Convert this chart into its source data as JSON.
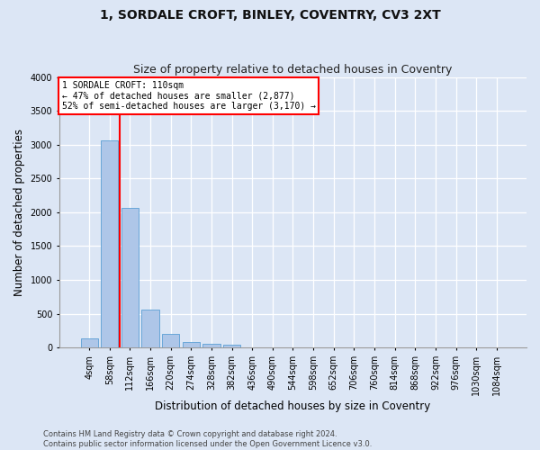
{
  "title": "1, SORDALE CROFT, BINLEY, COVENTRY, CV3 2XT",
  "subtitle": "Size of property relative to detached houses in Coventry",
  "xlabel": "Distribution of detached houses by size in Coventry",
  "ylabel": "Number of detached properties",
  "bar_color": "#aec6e8",
  "bar_edge_color": "#5a9fd4",
  "background_color": "#dce6f5",
  "grid_color": "#ffffff",
  "categories": [
    "4sqm",
    "58sqm",
    "112sqm",
    "166sqm",
    "220sqm",
    "274sqm",
    "328sqm",
    "382sqm",
    "436sqm",
    "490sqm",
    "544sqm",
    "598sqm",
    "652sqm",
    "706sqm",
    "760sqm",
    "814sqm",
    "868sqm",
    "922sqm",
    "976sqm",
    "1030sqm",
    "1084sqm"
  ],
  "bar_heights": [
    140,
    3060,
    2060,
    560,
    200,
    80,
    55,
    40,
    5,
    0,
    0,
    0,
    0,
    0,
    0,
    0,
    0,
    0,
    0,
    0,
    0
  ],
  "ylim": [
    0,
    4000
  ],
  "yticks": [
    0,
    500,
    1000,
    1500,
    2000,
    2500,
    3000,
    3500,
    4000
  ],
  "property_bar_index": 2,
  "annotation_text_line1": "1 SORDALE CROFT: 110sqm",
  "annotation_text_line2": "← 47% of detached houses are smaller (2,877)",
  "annotation_text_line3": "52% of semi-detached houses are larger (3,170) →",
  "footer_line1": "Contains HM Land Registry data © Crown copyright and database right 2024.",
  "footer_line2": "Contains public sector information licensed under the Open Government Licence v3.0.",
  "title_fontsize": 10,
  "subtitle_fontsize": 9,
  "axis_label_fontsize": 8.5,
  "tick_fontsize": 7,
  "annotation_fontsize": 7,
  "footer_fontsize": 6
}
